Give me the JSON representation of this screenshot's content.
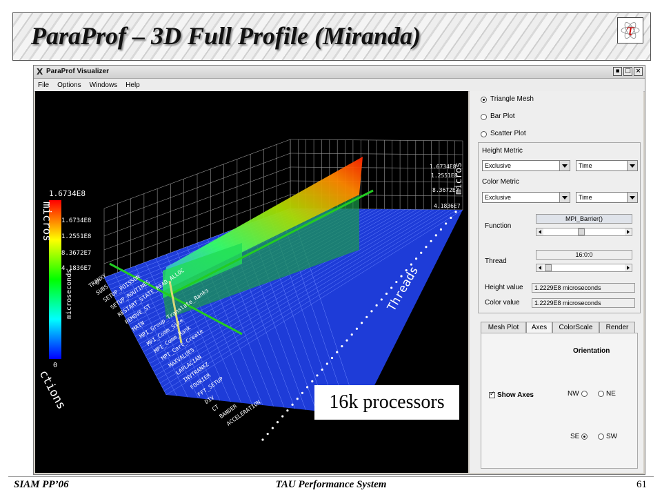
{
  "slide": {
    "title": "ParaProf – 3D Full Profile (Miranda)",
    "logo_glyph": "τ",
    "footer_left": "SIAM PP’06",
    "footer_center": "TAU Performance System",
    "page_number": "61",
    "callout": "16k processors"
  },
  "window": {
    "title": "ParaProf Visualizer",
    "menu": [
      "File",
      "Options",
      "Windows",
      "Help"
    ]
  },
  "plot": {
    "colorbar_max": "1.6734E8",
    "colorbar_min": "0",
    "colorbar_unit": "microseconds",
    "left_axis_title": "micros",
    "left_ticks": [
      "1.6734E8",
      "1.2551E8",
      "8.3672E7",
      "4.1836E7",
      "0"
    ],
    "right_ticks": [
      "1.6734E8",
      "1.2551E8",
      "8.3672E7",
      "4.1836E7"
    ],
    "right_axis_title": "micros",
    "threads_label": "Threads",
    "functions_label": "ctions",
    "function_names": [
      "ACCELERATION",
      "BANDER",
      "CT",
      "DIV",
      "FFT_SETUP",
      "FOURIER",
      "INVTRANXZ",
      "LAPLACIAN",
      "MAXVALUES",
      "MPI_Cart_Create",
      "MPI_Comm_Rank",
      "MPI_Comm_Size",
      "MPI_Group_Translate_Ranks",
      "MAIN",
      "REMOVE_ST",
      "RESTART_STATE_READ_ALLOC",
      "SETUP_ROUTINES",
      "SETUP_POISSON",
      "SUBS",
      "TRANXY"
    ]
  },
  "controls": {
    "display_mode": [
      {
        "label": "Triangle Mesh",
        "selected": true
      },
      {
        "label": "Bar Plot",
        "selected": false
      },
      {
        "label": "Scatter Plot",
        "selected": false
      }
    ],
    "height_metric_label": "Height Metric",
    "height_metric_value": "Exclusive",
    "height_metric_kind": "Time",
    "color_metric_label": "Color Metric",
    "color_metric_value": "Exclusive",
    "color_metric_kind": "Time",
    "function_label": "Function",
    "function_value": "MPI_Barrier()",
    "thread_label": "Thread",
    "thread_value": "16:0:0",
    "height_value_label": "Height value",
    "height_value": "1.2229E8 microseconds",
    "color_value_label": "Color value",
    "color_value": "1.2229E8 microseconds",
    "tabs": [
      {
        "label": "Mesh Plot",
        "active": false
      },
      {
        "label": "Axes",
        "active": true
      },
      {
        "label": "ColorScale",
        "active": false
      },
      {
        "label": "Render",
        "active": false
      }
    ],
    "orientation_label": "Orientation",
    "show_axes_label": "Show Axes",
    "show_axes_checked": true,
    "orientations": [
      {
        "label": "NW",
        "selected": false
      },
      {
        "label": "NE",
        "selected": false
      },
      {
        "label": "SE",
        "selected": true
      },
      {
        "label": "SW",
        "selected": false
      }
    ]
  }
}
